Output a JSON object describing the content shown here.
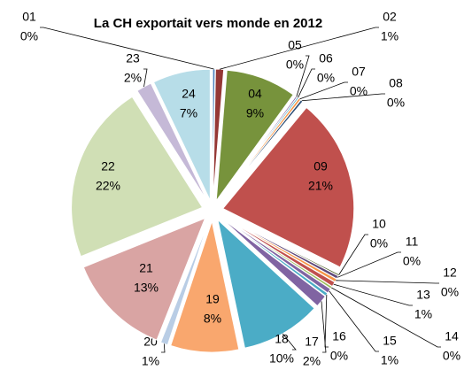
{
  "chart_data": {
    "type": "pie",
    "title": "La CH exportait vers monde en 2012",
    "categories": [
      "01",
      "02",
      "04",
      "05",
      "06",
      "07",
      "08",
      "09",
      "10",
      "11",
      "12",
      "13",
      "14",
      "15",
      "16",
      "17",
      "18",
      "19",
      "20",
      "21",
      "22",
      "23",
      "24"
    ],
    "values": [
      0.3,
      1.0,
      8.7,
      0.2,
      0.2,
      0.3,
      0.3,
      21.4,
      0.2,
      0.4,
      0.4,
      0.6,
      0.3,
      0.6,
      0.4,
      1.5,
      9.9,
      8.4,
      0.9,
      12.9,
      22.1,
      1.9,
      7.1
    ],
    "value_labels": [
      "0%",
      "1%",
      "9%",
      "0%",
      "0%",
      "0%",
      "0%",
      "21%",
      "0%",
      "0%",
      "0%",
      "1%",
      "0%",
      "1%",
      "0%",
      "2%",
      "10%",
      "8%",
      "1%",
      "13%",
      "22%",
      "2%",
      "7%"
    ],
    "colors": [
      "#4f81bd",
      "#953735",
      "#77933c",
      "#8064a2",
      "#4bacc6",
      "#f79646",
      "#2c4d75",
      "#c0504d",
      "#4f6228",
      "#604a7b",
      "#f79646",
      "#c0504d",
      "#9bbb59",
      "#8064a2",
      "#4bacc6",
      "#8064a2",
      "#4bacc6",
      "#f9a76e",
      "#b9cde5",
      "#d9a4a3",
      "#d0dfb5",
      "#c5b9d7",
      "#b7dde8"
    ]
  }
}
